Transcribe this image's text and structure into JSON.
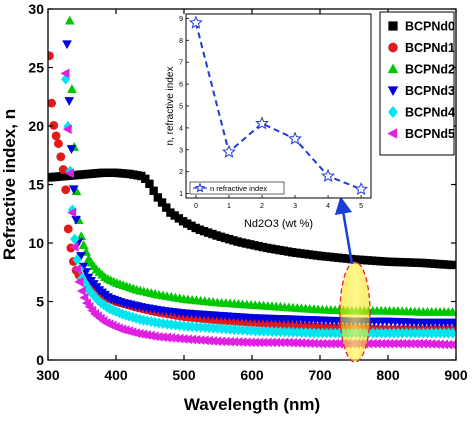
{
  "chart_data": [
    {
      "type": "scatter",
      "xlabel": "Wavelength (nm)",
      "ylabel": "Refractive index, n",
      "xlim": [
        300,
        900
      ],
      "ylim": [
        0,
        30
      ],
      "xticks": [
        300,
        400,
        500,
        600,
        700,
        800,
        900
      ],
      "yticks": [
        0,
        5,
        10,
        15,
        20,
        25,
        30
      ],
      "legend_position": "top-right",
      "series": [
        {
          "name": "BCPNd0",
          "marker": "square",
          "color": "#000000",
          "points": [
            [
              300,
              15.6
            ],
            [
              320,
              15.7
            ],
            [
              340,
              15.8
            ],
            [
              360,
              15.9
            ],
            [
              380,
              16.0
            ],
            [
              400,
              16.0
            ],
            [
              420,
              15.9
            ],
            [
              440,
              15.7
            ],
            [
              450,
              15.0
            ],
            [
              460,
              14.0
            ],
            [
              480,
              12.6
            ],
            [
              500,
              11.8
            ],
            [
              520,
              11.2
            ],
            [
              550,
              10.6
            ],
            [
              580,
              10.1
            ],
            [
              620,
              9.6
            ],
            [
              660,
              9.2
            ],
            [
              700,
              8.9
            ],
            [
              750,
              8.6
            ],
            [
              800,
              8.4
            ],
            [
              850,
              8.3
            ],
            [
              900,
              8.1
            ]
          ]
        },
        {
          "name": "BCPNd1",
          "marker": "circle",
          "color": "#e31a1c",
          "points": [
            [
              302,
              26.0
            ],
            [
              306,
              21.0
            ],
            [
              310,
              19.5
            ],
            [
              315,
              18.6
            ],
            [
              320,
              17.0
            ],
            [
              325,
              15.5
            ],
            [
              330,
              11.0
            ],
            [
              335,
              9.0
            ],
            [
              340,
              7.8
            ],
            [
              350,
              6.8
            ],
            [
              365,
              6.0
            ],
            [
              380,
              5.5
            ],
            [
              400,
              5.0
            ],
            [
              430,
              4.5
            ],
            [
              460,
              4.1
            ],
            [
              500,
              3.7
            ],
            [
              550,
              3.4
            ],
            [
              600,
              3.2
            ],
            [
              650,
              3.0
            ],
            [
              700,
              2.8
            ],
            [
              750,
              2.7
            ],
            [
              800,
              2.6
            ],
            [
              850,
              2.6
            ],
            [
              900,
              2.6
            ]
          ]
        },
        {
          "name": "BCPNd2",
          "marker": "triangle-up",
          "color": "#00c800",
          "points": [
            [
              332,
              29.0
            ],
            [
              334,
              25.0
            ],
            [
              336,
              22.0
            ],
            [
              338,
              19.0
            ],
            [
              340,
              16.0
            ],
            [
              343,
              13.5
            ],
            [
              346,
              11.5
            ],
            [
              350,
              10.2
            ],
            [
              360,
              8.6
            ],
            [
              370,
              7.8
            ],
            [
              385,
              7.0
            ],
            [
              400,
              6.6
            ],
            [
              430,
              6.0
            ],
            [
              460,
              5.6
            ],
            [
              500,
              5.2
            ],
            [
              550,
              4.9
            ],
            [
              600,
              4.7
            ],
            [
              650,
              4.5
            ],
            [
              700,
              4.3
            ],
            [
              750,
              4.2
            ],
            [
              800,
              4.2
            ],
            [
              850,
              4.1
            ],
            [
              900,
              4.1
            ]
          ]
        },
        {
          "name": "BCPNd3",
          "marker": "triangle-down",
          "color": "#0000e0",
          "points": [
            [
              328,
              27.0
            ],
            [
              330,
              24.0
            ],
            [
              332,
              21.0
            ],
            [
              335,
              17.5
            ],
            [
              338,
              14.5
            ],
            [
              342,
              11.5
            ],
            [
              346,
              9.5
            ],
            [
              352,
              8.0
            ],
            [
              360,
              7.0
            ],
            [
              375,
              6.0
            ],
            [
              390,
              5.3
            ],
            [
              410,
              4.9
            ],
            [
              440,
              4.5
            ],
            [
              470,
              4.2
            ],
            [
              500,
              4.0
            ],
            [
              550,
              3.8
            ],
            [
              600,
              3.6
            ],
            [
              650,
              3.5
            ],
            [
              700,
              3.4
            ],
            [
              750,
              3.3
            ],
            [
              800,
              3.3
            ],
            [
              850,
              3.2
            ],
            [
              900,
              3.2
            ]
          ]
        },
        {
          "name": "BCPNd4",
          "marker": "diamond",
          "color": "#00e5ee",
          "points": [
            [
              326,
              24.0
            ],
            [
              330,
              19.0
            ],
            [
              334,
              14.5
            ],
            [
              338,
              11.0
            ],
            [
              343,
              8.5
            ],
            [
              350,
              7.0
            ],
            [
              360,
              6.0
            ],
            [
              375,
              5.0
            ],
            [
              390,
              4.4
            ],
            [
              410,
              3.9
            ],
            [
              440,
              3.4
            ],
            [
              470,
              3.1
            ],
            [
              500,
              2.9
            ],
            [
              550,
              2.7
            ],
            [
              600,
              2.5
            ],
            [
              650,
              2.4
            ],
            [
              700,
              2.3
            ],
            [
              750,
              2.3
            ],
            [
              800,
              2.3
            ],
            [
              850,
              2.3
            ],
            [
              900,
              2.3
            ]
          ]
        },
        {
          "name": "BCPNd5",
          "marker": "triangle-left",
          "color": "#e020e0",
          "points": [
            [
              326,
              24.5
            ],
            [
              329,
              20.0
            ],
            [
              332,
              16.5
            ],
            [
              335,
              13.5
            ],
            [
              338,
              10.5
            ],
            [
              342,
              8.0
            ],
            [
              348,
              6.2
            ],
            [
              356,
              5.0
            ],
            [
              368,
              4.0
            ],
            [
              385,
              3.2
            ],
            [
              405,
              2.7
            ],
            [
              430,
              2.3
            ],
            [
              460,
              2.0
            ],
            [
              500,
              1.8
            ],
            [
              550,
              1.6
            ],
            [
              600,
              1.5
            ],
            [
              650,
              1.5
            ],
            [
              700,
              1.4
            ],
            [
              750,
              1.4
            ],
            [
              800,
              1.4
            ],
            [
              850,
              1.4
            ],
            [
              900,
              1.3
            ]
          ]
        }
      ]
    },
    {
      "type": "line",
      "xlabel": "Nd2O3 (wt %)",
      "ylabel": "n, refractive index",
      "xlim": [
        -0.3,
        5.3
      ],
      "ylim": [
        0.8,
        9.2
      ],
      "xticks": [
        0,
        1,
        2,
        3,
        4,
        5
      ],
      "yticks": [
        1,
        2,
        3,
        4,
        5,
        6,
        7,
        8,
        9
      ],
      "legend_position": "bottom-left",
      "series": [
        {
          "name": "n refractive index",
          "marker": "star",
          "color": "#1f3ad8",
          "x": [
            0,
            1,
            2,
            3,
            4,
            5
          ],
          "y": [
            8.8,
            2.9,
            4.2,
            3.5,
            1.8,
            1.2
          ]
        }
      ]
    }
  ]
}
